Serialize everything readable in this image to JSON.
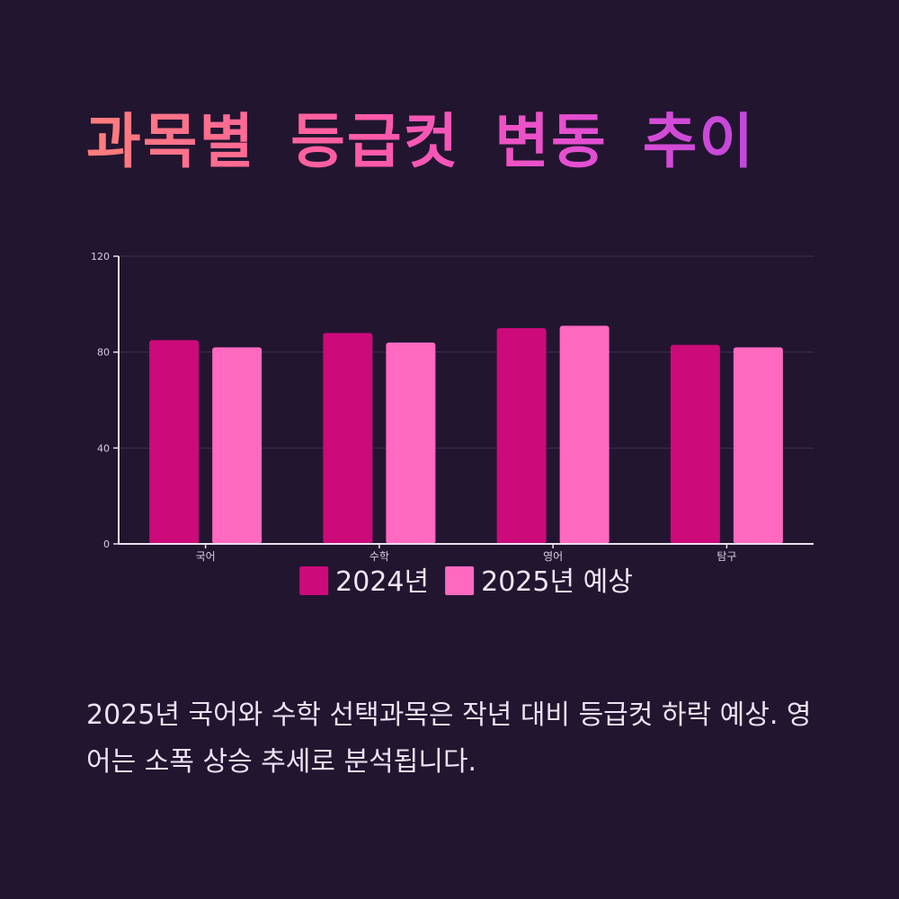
{
  "title": "과목별 등급컷 변동 추이",
  "caption": "2025년 국어와 수학 선택과목은 작년 대비 등급컷 하락 예상. 영어는 소폭 상승 추세로 분석됩니다.",
  "colors": {
    "background": "#221530",
    "series_2024": "#cc0a79",
    "series_2025": "#ff69c0",
    "axis": "#e8e0ee",
    "grid": "#3d3050",
    "tick_text": "#d8cde2",
    "legend_text": "#efe6f5"
  },
  "chart_data": {
    "type": "bar",
    "categories": [
      "국어",
      "수학",
      "영어",
      "탐구"
    ],
    "series": [
      {
        "name": "2024년",
        "values": [
          85,
          88,
          90,
          83
        ]
      },
      {
        "name": "2025년 예상",
        "values": [
          82,
          84,
          91,
          82
        ]
      }
    ],
    "yticks": [
      "0",
      "40",
      "80",
      "120"
    ],
    "ylim": [
      0,
      120
    ],
    "grid": true,
    "legend_position": "bottom-center"
  }
}
